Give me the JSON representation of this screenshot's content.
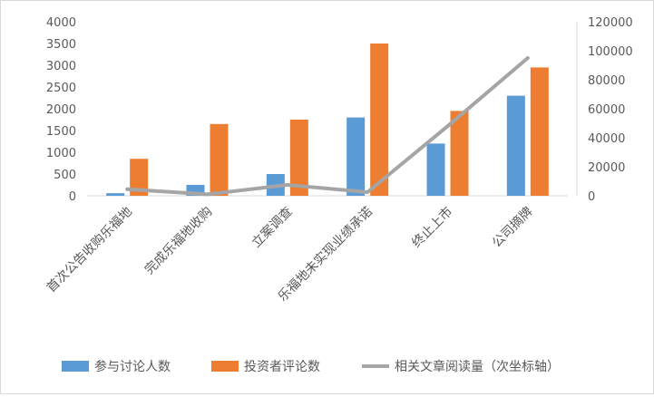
{
  "chart_data": {
    "type": "bar",
    "categories": [
      "首次公告收购乐福地",
      "完成乐福地收购",
      "立案调查",
      "乐福地未实现业绩承诺",
      "终止上市",
      "公司摘牌"
    ],
    "series": [
      {
        "name": "参与讨论人数",
        "type": "bar",
        "axis": "primary",
        "color": "#5b9bd5",
        "values": [
          60,
          250,
          500,
          1800,
          1200,
          2300
        ]
      },
      {
        "name": "投资者评论数",
        "type": "bar",
        "axis": "primary",
        "color": "#ed7d31",
        "values": [
          850,
          1650,
          1750,
          3500,
          1950,
          2950
        ]
      },
      {
        "name": "相关文章阅读量（次坐标轴）",
        "type": "line",
        "axis": "secondary",
        "color": "#a5a5a5",
        "values": [
          4500,
          1000,
          7500,
          2500,
          48000,
          95000
        ]
      }
    ],
    "ylim": [
      0,
      4000
    ],
    "yticks": [
      0,
      500,
      1000,
      1500,
      2000,
      2500,
      3000,
      3500,
      4000
    ],
    "y2lim": [
      0,
      120000
    ],
    "y2ticks": [
      0,
      20000,
      40000,
      60000,
      80000,
      100000,
      120000
    ],
    "title": "",
    "xlabel": "",
    "ylabel": "",
    "grid": false,
    "legend": "bottom"
  }
}
